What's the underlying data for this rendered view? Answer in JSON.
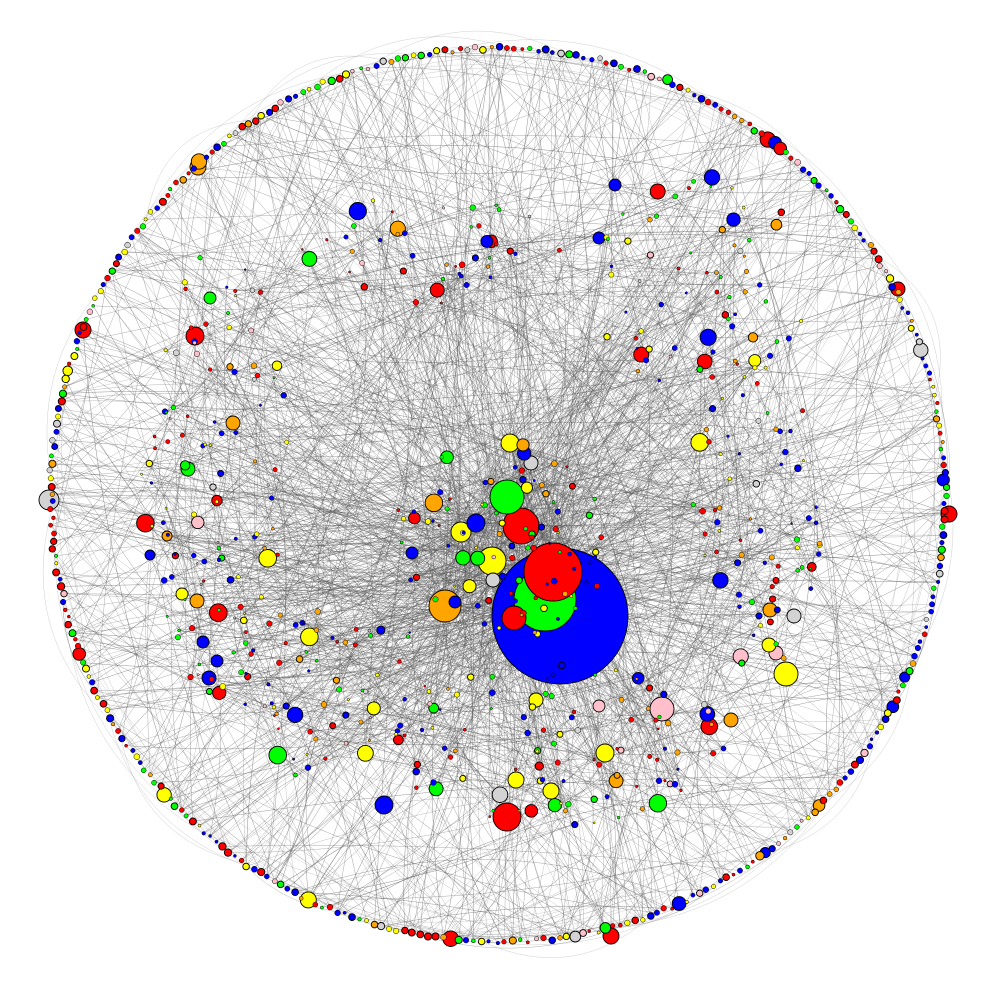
{
  "diagram": {
    "type": "network-graph",
    "layout": "circular",
    "background": "#ffffff",
    "edge_color": "#555555",
    "node_stroke": "#000000",
    "node_colors": {
      "blue": "#0000ff",
      "red": "#ff0000",
      "green": "#00ff00",
      "yellow": "#ffff00",
      "orange": "#ffa500",
      "pink": "#ffc0cb",
      "gray": "#d3d3d3"
    },
    "color_order": [
      "blue",
      "red",
      "green",
      "yellow",
      "orange",
      "pink",
      "gray"
    ],
    "color_weights": [
      0.26,
      0.25,
      0.16,
      0.14,
      0.11,
      0.04,
      0.04
    ],
    "labels_shown": false
  }
}
